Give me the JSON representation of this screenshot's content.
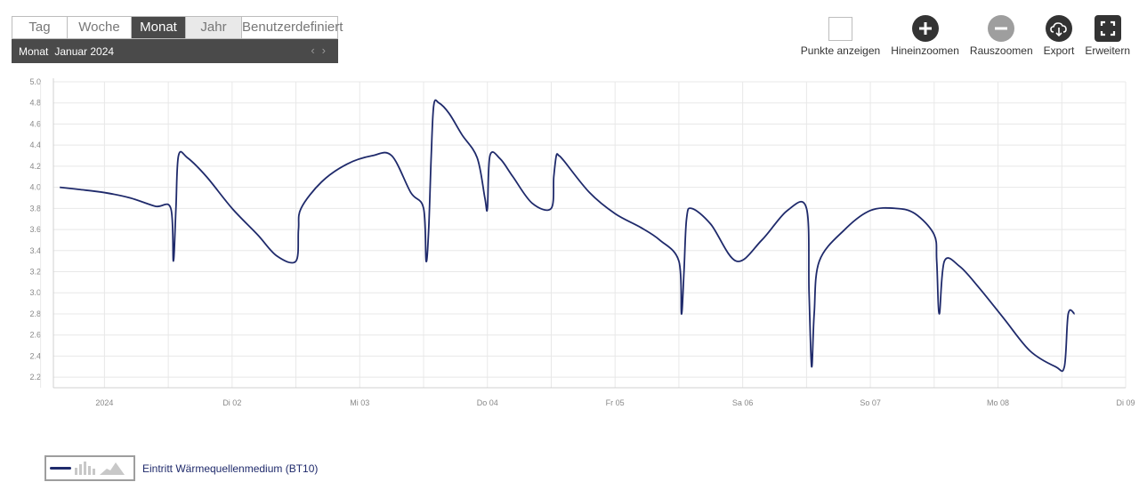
{
  "period_tabs": [
    {
      "label": "Tag",
      "state": "normal"
    },
    {
      "label": "Woche",
      "state": "normal"
    },
    {
      "label": "Monat",
      "state": "active"
    },
    {
      "label": "Jahr",
      "state": "hover"
    },
    {
      "label": "Benutzerdefiniert",
      "state": "normal"
    }
  ],
  "period_bar": {
    "mode_label": "Monat",
    "range_label": "Januar 2024",
    "prev_glyph": "‹",
    "next_glyph": "›"
  },
  "toolbar": {
    "show_points": "Punkte anzeigen",
    "zoom_in": "Hineinzoomen",
    "zoom_out": "Rauszoomen",
    "export": "Export",
    "expand": "Erweitern"
  },
  "colors": {
    "series": "#1f2a6b",
    "active_tab": "#4a4a4a",
    "grid": "#e8e8e8",
    "axis_text": "#888888"
  },
  "chart_data": {
    "type": "line",
    "title": "",
    "xlabel": "",
    "ylabel": "",
    "ylim": [
      2.1,
      5.0
    ],
    "yticks": [
      2.2,
      2.4,
      2.6,
      2.8,
      3.0,
      3.2,
      3.4,
      3.6,
      3.8,
      4.0,
      4.2,
      4.4,
      4.6,
      4.8,
      5.0
    ],
    "xlim": [
      -0.4,
      8.0
    ],
    "xticks": [
      {
        "x": 0,
        "label": "2024"
      },
      {
        "x": 1,
        "label": "Di 02"
      },
      {
        "x": 2,
        "label": "Mi 03"
      },
      {
        "x": 3,
        "label": "Do 04"
      },
      {
        "x": 4,
        "label": "Fr 05"
      },
      {
        "x": 5,
        "label": "Sa 06"
      },
      {
        "x": 6,
        "label": "So 07"
      },
      {
        "x": 7,
        "label": "Mo 08"
      },
      {
        "x": 8,
        "label": "Di 09"
      }
    ],
    "grid": true,
    "series": [
      {
        "name": "Eintritt Wärmequellenmedium (BT10)",
        "x": [
          -0.35,
          -0.2,
          0.0,
          0.2,
          0.4,
          0.52,
          0.54,
          0.56,
          0.58,
          0.65,
          0.8,
          1.0,
          1.2,
          1.35,
          1.5,
          1.52,
          1.54,
          1.7,
          1.9,
          2.1,
          2.25,
          2.4,
          2.5,
          2.52,
          2.54,
          2.56,
          2.58,
          2.62,
          2.7,
          2.8,
          2.92,
          2.98,
          3.0,
          3.02,
          3.1,
          3.2,
          3.35,
          3.5,
          3.52,
          3.54,
          3.56,
          3.6,
          3.8,
          4.0,
          4.2,
          4.35,
          4.5,
          4.52,
          4.54,
          4.56,
          4.6,
          4.75,
          4.95,
          5.15,
          5.35,
          5.5,
          5.52,
          5.54,
          5.56,
          5.6,
          5.8,
          6.0,
          6.2,
          6.35,
          6.5,
          6.52,
          6.54,
          6.58,
          6.7,
          6.85,
          7.05,
          7.25,
          7.45,
          7.52,
          7.55,
          7.6
        ],
        "values": [
          4.0,
          3.98,
          3.95,
          3.9,
          3.82,
          3.8,
          3.3,
          3.8,
          4.3,
          4.28,
          4.1,
          3.8,
          3.55,
          3.35,
          3.3,
          3.6,
          3.8,
          4.05,
          4.22,
          4.3,
          4.3,
          3.95,
          3.8,
          3.3,
          3.6,
          4.3,
          4.78,
          4.8,
          4.7,
          4.5,
          4.28,
          3.9,
          3.8,
          4.3,
          4.27,
          4.1,
          3.85,
          3.8,
          4.1,
          4.3,
          4.3,
          4.25,
          3.95,
          3.75,
          3.62,
          3.5,
          3.3,
          2.8,
          3.2,
          3.7,
          3.8,
          3.65,
          3.3,
          3.5,
          3.78,
          3.8,
          3.0,
          2.3,
          2.8,
          3.3,
          3.6,
          3.78,
          3.8,
          3.75,
          3.55,
          3.3,
          2.8,
          3.3,
          3.25,
          3.05,
          2.75,
          2.45,
          2.3,
          2.3,
          2.8,
          2.8
        ]
      }
    ]
  }
}
